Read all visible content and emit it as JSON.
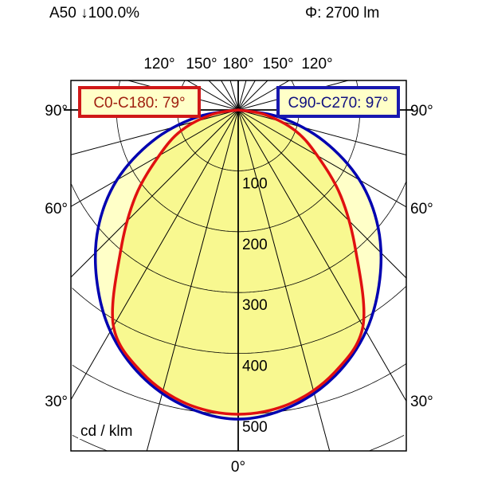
{
  "header": {
    "left": "A50 ↓100.0%",
    "right": "Φ: 2700 lm"
  },
  "chart_data": {
    "type": "polar",
    "unit_label": "cd / klm",
    "radial_ticks": [
      100,
      200,
      300,
      400,
      500
    ],
    "radial_range": [
      0,
      500
    ],
    "angle_labels": {
      "top": [
        "120°",
        "150°",
        "180°",
        "150°",
        "120°"
      ],
      "left": [
        "90°",
        "60°",
        "30°"
      ],
      "right": [
        "90°",
        "60°",
        "30°"
      ],
      "bottom": "0°"
    },
    "gamma_deg": [
      0,
      10,
      20,
      30,
      40,
      50,
      60,
      70,
      80,
      90
    ],
    "series": [
      {
        "name": "C90-C270: 97°",
        "color": "#0000b0",
        "fill": "#ffffc8",
        "values": [
          508,
          495,
          465,
          420,
          362,
          300,
          230,
          150,
          70,
          0
        ]
      },
      {
        "name": "C0-C180: 79°",
        "color": "#e01010",
        "fill": "#f8f890",
        "values": [
          500,
          490,
          460,
          410,
          300,
          220,
          150,
          100,
          45,
          0
        ]
      }
    ],
    "grid": true
  }
}
